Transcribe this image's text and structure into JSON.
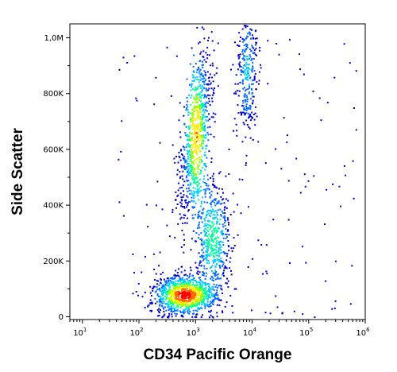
{
  "chart_data": {
    "type": "scatter",
    "title": "",
    "xlabel": "CD34 Pacific Orange",
    "ylabel": "Side Scatter",
    "x_scale": "log",
    "xlim": [
      6,
      1000000
    ],
    "ylim": [
      -10000,
      1050000
    ],
    "grid": false,
    "x_ticks": [
      {
        "value": 10,
        "base": "10",
        "exp": "1"
      },
      {
        "value": 100,
        "base": "10",
        "exp": "2"
      },
      {
        "value": 1000,
        "base": "10",
        "exp": "3"
      },
      {
        "value": 10000,
        "base": "10",
        "exp": "4"
      },
      {
        "value": 100000,
        "base": "10",
        "exp": "5"
      },
      {
        "value": 1000000,
        "base": "10",
        "exp": "6"
      }
    ],
    "y_ticks": [
      {
        "value": 0,
        "label": "0"
      },
      {
        "value": 200000,
        "label": "200K"
      },
      {
        "value": 400000,
        "label": "400K"
      },
      {
        "value": 600000,
        "label": "600K"
      },
      {
        "value": 800000,
        "label": "800K"
      },
      {
        "value": 1000000,
        "label": "1,0M"
      }
    ],
    "density_colors": [
      "#0000cc",
      "#0066ff",
      "#00ccff",
      "#00ff99",
      "#99ff00",
      "#ffee00",
      "#ff6600",
      "#ff0000"
    ],
    "populations": [
      {
        "name": "",
        "cx_log10": 2.8,
        "cy": 80000,
        "sx_log10": 0.28,
        "sy": 35000,
        "weight": 1.0
      },
      {
        "name": "",
        "cx_log10": 3.0,
        "cy": 650000,
        "sx_log10": 0.12,
        "sy": 160000,
        "weight": 0.8
      },
      {
        "name": "",
        "cx_log10": 3.3,
        "cy": 280000,
        "sx_log10": 0.15,
        "sy": 100000,
        "weight": 0.5
      },
      {
        "name": "",
        "cx_log10": 3.9,
        "cy": 880000,
        "sx_log10": 0.1,
        "sy": 120000,
        "weight": 0.3
      }
    ]
  }
}
